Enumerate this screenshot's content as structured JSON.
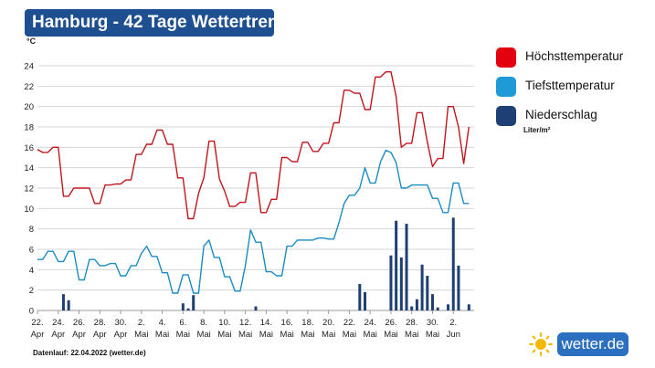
{
  "header": {
    "title": "Hamburg - 42 Tage Wettertrend"
  },
  "legend": {
    "items": [
      {
        "label": "Höchsttemperatur",
        "color": "#e3000f"
      },
      {
        "label": "Tiefsttemperatur",
        "color": "#1e9bd7"
      },
      {
        "label": "Niederschlag",
        "color": "#1d3f73"
      }
    ],
    "unit": "Liter/m²"
  },
  "footer": {
    "text": "Datenlauf: 22.04.2022 (wetter.de)"
  },
  "brand": {
    "name": "wetter.de",
    "icon": "sun-icon"
  },
  "chart_data": {
    "type": "line",
    "ylabel": "°C",
    "ylim": [
      0,
      24
    ],
    "yticks": [
      0,
      2,
      4,
      6,
      8,
      10,
      12,
      14,
      16,
      18,
      20,
      22,
      24
    ],
    "grid": true,
    "legend_position": "right",
    "x_days": 42,
    "x_tick_labels": [
      {
        "day": 0,
        "top": "22.",
        "bottom": "Apr"
      },
      {
        "day": 2,
        "top": "24.",
        "bottom": "Apr"
      },
      {
        "day": 4,
        "top": "26.",
        "bottom": "Apr"
      },
      {
        "day": 6,
        "top": "28.",
        "bottom": "Apr"
      },
      {
        "day": 8,
        "top": "30.",
        "bottom": "Apr"
      },
      {
        "day": 10,
        "top": "2.",
        "bottom": "Mai"
      },
      {
        "day": 12,
        "top": "4.",
        "bottom": "Mai"
      },
      {
        "day": 14,
        "top": "6.",
        "bottom": "Mai"
      },
      {
        "day": 16,
        "top": "8.",
        "bottom": "Mai"
      },
      {
        "day": 18,
        "top": "10.",
        "bottom": "Mai"
      },
      {
        "day": 20,
        "top": "12.",
        "bottom": "Mai"
      },
      {
        "day": 22,
        "top": "14.",
        "bottom": "Mai"
      },
      {
        "day": 24,
        "top": "16.",
        "bottom": "Mai"
      },
      {
        "day": 26,
        "top": "18.",
        "bottom": "Mai"
      },
      {
        "day": 28,
        "top": "20.",
        "bottom": "Mai"
      },
      {
        "day": 30,
        "top": "22.",
        "bottom": "Mai"
      },
      {
        "day": 32,
        "top": "24.",
        "bottom": "Mai"
      },
      {
        "day": 34,
        "top": "26.",
        "bottom": "Mai"
      },
      {
        "day": 36,
        "top": "28.",
        "bottom": "Mai"
      },
      {
        "day": 38,
        "top": "30.",
        "bottom": "Mai"
      },
      {
        "day": 40,
        "top": "2.",
        "bottom": "Jun"
      }
    ],
    "series": [
      {
        "name": "Höchsttemperatur",
        "color": "#c0161b",
        "points": [
          [
            0,
            15.8
          ],
          [
            0.5,
            15.5
          ],
          [
            1,
            15.5
          ],
          [
            1.5,
            16
          ],
          [
            2,
            16
          ],
          [
            2.5,
            11.2
          ],
          [
            3,
            11.2
          ],
          [
            3.5,
            12
          ],
          [
            4,
            12
          ],
          [
            4.5,
            12
          ],
          [
            5,
            12
          ],
          [
            5.5,
            10.5
          ],
          [
            6,
            10.5
          ],
          [
            6.5,
            12.3
          ],
          [
            7,
            12.3
          ],
          [
            7.5,
            12.4
          ],
          [
            8,
            12.4
          ],
          [
            8.5,
            12.8
          ],
          [
            9,
            12.8
          ],
          [
            9.5,
            15.3
          ],
          [
            10,
            15.3
          ],
          [
            10.5,
            16.3
          ],
          [
            11,
            16.3
          ],
          [
            11.5,
            17.7
          ],
          [
            12,
            17.7
          ],
          [
            12.5,
            16.3
          ],
          [
            13,
            16.3
          ],
          [
            13.5,
            13
          ],
          [
            14,
            13
          ],
          [
            14.5,
            9
          ],
          [
            15,
            9
          ],
          [
            15.5,
            11.5
          ],
          [
            16,
            13
          ],
          [
            16.5,
            16.6
          ],
          [
            17,
            16.6
          ],
          [
            17.5,
            12.9
          ],
          [
            18,
            11.7
          ],
          [
            18.5,
            10.2
          ],
          [
            19,
            10.2
          ],
          [
            19.5,
            10.6
          ],
          [
            20,
            10.6
          ],
          [
            20.5,
            13.5
          ],
          [
            21,
            13.5
          ],
          [
            21.5,
            9.6
          ],
          [
            22,
            9.6
          ],
          [
            22.5,
            10.9
          ],
          [
            23,
            10.9
          ],
          [
            23.5,
            15
          ],
          [
            24,
            15
          ],
          [
            24.5,
            14.6
          ],
          [
            25,
            14.6
          ],
          [
            25.5,
            16.5
          ],
          [
            26,
            16.5
          ],
          [
            26.5,
            15.6
          ],
          [
            27,
            15.6
          ],
          [
            27.5,
            16.4
          ],
          [
            28,
            16.4
          ],
          [
            28.5,
            18.4
          ],
          [
            29,
            18.4
          ],
          [
            29.5,
            21.6
          ],
          [
            30,
            21.6
          ],
          [
            30.5,
            21.3
          ],
          [
            31,
            21.3
          ],
          [
            31.5,
            19.7
          ],
          [
            32,
            19.7
          ],
          [
            32.5,
            22.9
          ],
          [
            33,
            22.9
          ],
          [
            33.5,
            23.4
          ],
          [
            34,
            23.4
          ],
          [
            34.5,
            21
          ],
          [
            35,
            16
          ],
          [
            35.5,
            16.4
          ],
          [
            36,
            16.4
          ],
          [
            36.5,
            19.4
          ],
          [
            37,
            19.4
          ],
          [
            37.5,
            16.5
          ],
          [
            38,
            14.1
          ],
          [
            38.5,
            14.9
          ],
          [
            39,
            14.9
          ],
          [
            39.5,
            20
          ],
          [
            40,
            20
          ],
          [
            40.5,
            18
          ],
          [
            41,
            14.4
          ],
          [
            41.5,
            18
          ]
        ]
      },
      {
        "name": "Tiefsttemperatur",
        "color": "#1a8cc4",
        "points": [
          [
            0,
            5
          ],
          [
            0.5,
            5
          ],
          [
            1,
            5.8
          ],
          [
            1.5,
            5.8
          ],
          [
            2,
            4.8
          ],
          [
            2.5,
            4.8
          ],
          [
            3,
            5.8
          ],
          [
            3.5,
            5.8
          ],
          [
            4,
            3
          ],
          [
            4.5,
            3
          ],
          [
            5,
            5
          ],
          [
            5.5,
            5
          ],
          [
            6,
            4.4
          ],
          [
            6.5,
            4.4
          ],
          [
            7,
            4.6
          ],
          [
            7.5,
            4.6
          ],
          [
            8,
            3.4
          ],
          [
            8.5,
            3.4
          ],
          [
            9,
            4.4
          ],
          [
            9.5,
            4.4
          ],
          [
            10,
            5.6
          ],
          [
            10.5,
            6.3
          ],
          [
            11,
            5.3
          ],
          [
            11.5,
            5.3
          ],
          [
            12,
            3.7
          ],
          [
            12.5,
            3.7
          ],
          [
            13,
            1.7
          ],
          [
            13.5,
            1.7
          ],
          [
            14,
            3.5
          ],
          [
            14.5,
            3.5
          ],
          [
            15,
            1.7
          ],
          [
            15.5,
            1.7
          ],
          [
            16,
            6.3
          ],
          [
            16.5,
            6.9
          ],
          [
            17,
            5.2
          ],
          [
            17.5,
            5.2
          ],
          [
            18,
            3.3
          ],
          [
            18.5,
            3.3
          ],
          [
            19,
            1.9
          ],
          [
            19.5,
            1.9
          ],
          [
            20,
            4.4
          ],
          [
            20.5,
            7.9
          ],
          [
            21,
            6.7
          ],
          [
            21.5,
            6.7
          ],
          [
            22,
            3.8
          ],
          [
            22.5,
            3.8
          ],
          [
            23,
            3.4
          ],
          [
            23.5,
            3.4
          ],
          [
            24,
            6.3
          ],
          [
            24.5,
            6.3
          ],
          [
            25,
            6.9
          ],
          [
            25.5,
            6.9
          ],
          [
            26,
            6.9
          ],
          [
            26.5,
            6.9
          ],
          [
            27,
            7.1
          ],
          [
            27.5,
            7.1
          ],
          [
            28,
            7
          ],
          [
            28.5,
            7
          ],
          [
            29,
            8.6
          ],
          [
            29.5,
            10.5
          ],
          [
            30,
            11.3
          ],
          [
            30.5,
            11.3
          ],
          [
            31,
            12
          ],
          [
            31.5,
            14
          ],
          [
            32,
            12.5
          ],
          [
            32.5,
            12.5
          ],
          [
            33,
            14.6
          ],
          [
            33.5,
            15.7
          ],
          [
            34,
            15.5
          ],
          [
            34.5,
            14.5
          ],
          [
            35,
            12
          ],
          [
            35.5,
            12
          ],
          [
            36,
            12.3
          ],
          [
            36.5,
            12.3
          ],
          [
            37,
            12.3
          ],
          [
            37.5,
            12.3
          ],
          [
            38,
            11
          ],
          [
            38.5,
            11
          ],
          [
            39,
            9.6
          ],
          [
            39.5,
            9.6
          ],
          [
            40,
            12.5
          ],
          [
            40.5,
            12.5
          ],
          [
            41,
            10.5
          ],
          [
            41.5,
            10.5
          ]
        ]
      },
      {
        "name": "Niederschlag",
        "color": "#1d3f73",
        "type": "bar",
        "bars": [
          [
            2.5,
            1.6
          ],
          [
            3,
            1
          ],
          [
            14,
            0.7
          ],
          [
            14.5,
            0.2
          ],
          [
            15,
            1.5
          ],
          [
            21,
            0.4
          ],
          [
            31,
            2.6
          ],
          [
            31.5,
            1.8
          ],
          [
            34,
            5.4
          ],
          [
            34.5,
            8.8
          ],
          [
            35,
            5.2
          ],
          [
            35.5,
            8.5
          ],
          [
            36,
            0.4
          ],
          [
            36.5,
            1.1
          ],
          [
            37,
            4.5
          ],
          [
            37.5,
            3.4
          ],
          [
            38,
            1.6
          ],
          [
            38.5,
            0.3
          ],
          [
            39.5,
            0.6
          ],
          [
            40,
            9.1
          ],
          [
            40.5,
            4.4
          ],
          [
            41.5,
            0.6
          ]
        ]
      }
    ]
  }
}
